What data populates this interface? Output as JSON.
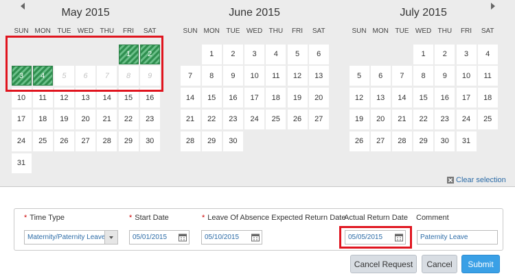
{
  "calendar": {
    "months": [
      {
        "title": "May 2015",
        "weekdays": [
          "SUN",
          "MON",
          "TUE",
          "WED",
          "THU",
          "FRI",
          "SAT"
        ],
        "weeks": [
          [
            null,
            null,
            null,
            null,
            null,
            1,
            2
          ],
          [
            3,
            4,
            5,
            6,
            7,
            8,
            9
          ],
          [
            10,
            11,
            12,
            13,
            14,
            15,
            16
          ],
          [
            17,
            18,
            19,
            20,
            21,
            22,
            23
          ],
          [
            24,
            25,
            26,
            27,
            28,
            29,
            30
          ],
          [
            31,
            null,
            null,
            null,
            null,
            null,
            null
          ]
        ],
        "selected": [
          1,
          2,
          3,
          4
        ],
        "disabled": [
          5,
          6,
          7,
          8,
          9
        ]
      },
      {
        "title": "June 2015",
        "weekdays": [
          "SUN",
          "MON",
          "TUE",
          "WED",
          "THU",
          "FRI",
          "SAT"
        ],
        "weeks": [
          [
            null,
            1,
            2,
            3,
            4,
            5,
            6
          ],
          [
            7,
            8,
            9,
            10,
            11,
            12,
            13
          ],
          [
            14,
            15,
            16,
            17,
            18,
            19,
            20
          ],
          [
            21,
            22,
            23,
            24,
            25,
            26,
            27
          ],
          [
            28,
            29,
            30,
            null,
            null,
            null,
            null
          ]
        ],
        "selected": [],
        "disabled": []
      },
      {
        "title": "July 2015",
        "weekdays": [
          "SUN",
          "MON",
          "TUE",
          "WED",
          "THU",
          "FRI",
          "SAT"
        ],
        "weeks": [
          [
            null,
            null,
            null,
            1,
            2,
            3,
            4
          ],
          [
            5,
            6,
            7,
            8,
            9,
            10,
            11
          ],
          [
            12,
            13,
            14,
            15,
            16,
            17,
            18
          ],
          [
            19,
            20,
            21,
            22,
            23,
            24,
            25
          ],
          [
            26,
            27,
            28,
            29,
            30,
            31,
            null
          ]
        ],
        "selected": [],
        "disabled": []
      }
    ],
    "clear_selection": "Clear selection"
  },
  "form": {
    "required_marker": "*",
    "fields": [
      {
        "label": "Time Type",
        "value": "Maternity/Paternity Leave"
      },
      {
        "label": "Start Date",
        "value": "05/01/2015"
      },
      {
        "label": "Leave Of Absence Expected Return Date",
        "value": "05/10/2015"
      },
      {
        "label": "Actual Return Date",
        "value": "05/05/2015"
      },
      {
        "label": "Comment",
        "value": "Paternity Leave"
      }
    ],
    "buttons": [
      "Cancel Request",
      "Cancel",
      "Submit"
    ]
  }
}
